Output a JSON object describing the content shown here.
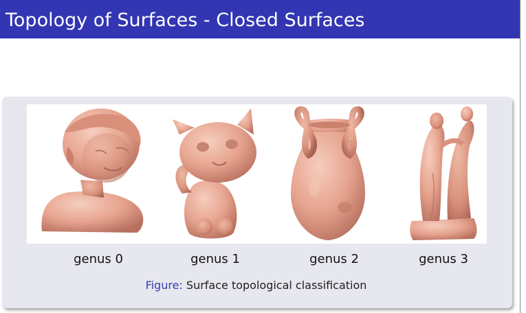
{
  "slide": {
    "title": "Topology of Surfaces - Closed Surfaces"
  },
  "figure": {
    "labels": [
      "genus 0",
      "genus 1",
      "genus 2",
      "genus 3"
    ],
    "caption_prefix": "Figure:",
    "caption_text": "Surface topological classification"
  },
  "colors": {
    "title_bar": "#3236b2",
    "block_background": "#e7e7ef",
    "model_skin": "#e8a590",
    "caption_prefix": "#3a3fae"
  }
}
